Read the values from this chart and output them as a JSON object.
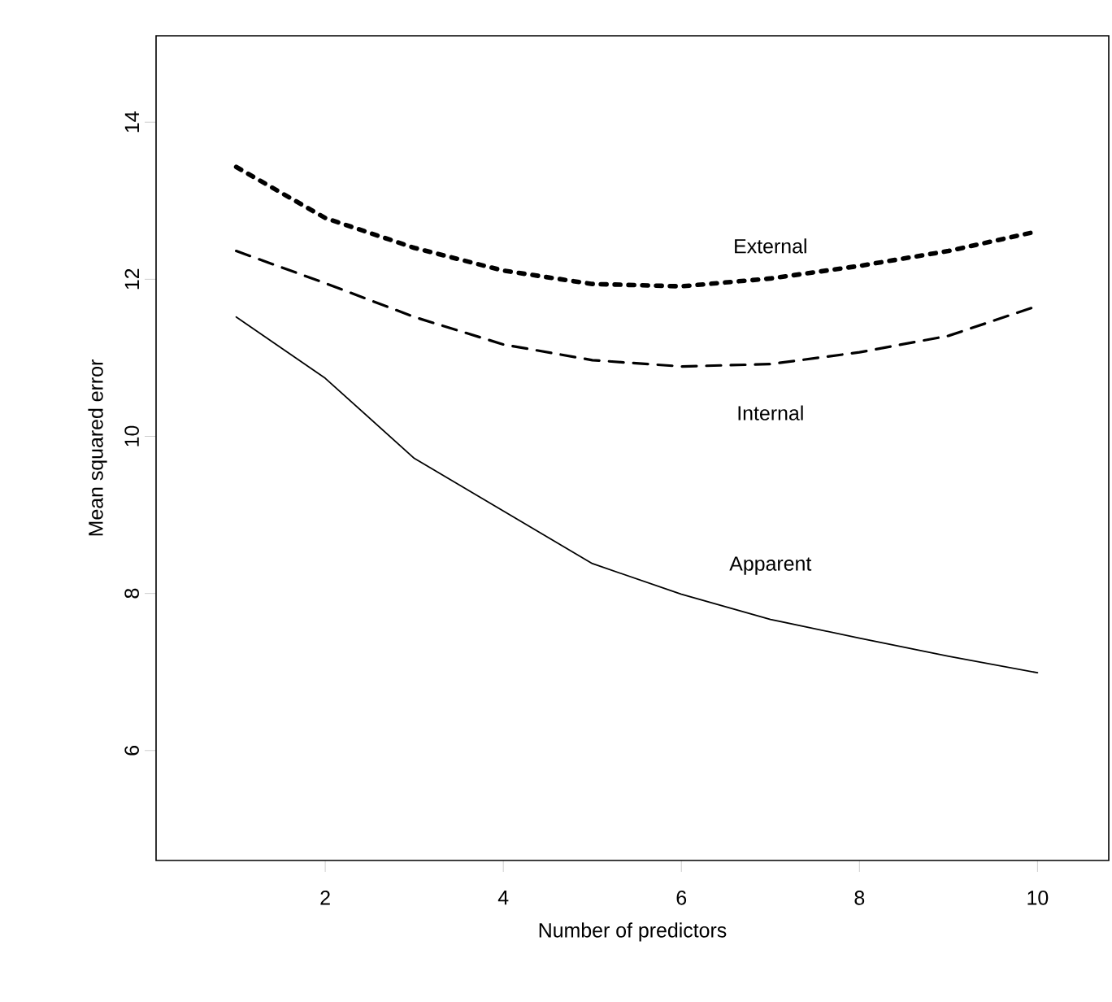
{
  "chart_data": {
    "type": "line",
    "xlabel": "Number of predictors",
    "ylabel": "Mean squared error",
    "x": [
      1,
      2,
      3,
      4,
      5,
      6,
      7,
      8,
      9,
      10
    ],
    "xlim": [
      0.1,
      10.8
    ],
    "ylim": [
      4.6,
      15.1
    ],
    "xticks": [
      2,
      4,
      6,
      8,
      10
    ],
    "yticks": [
      6,
      8,
      10,
      12,
      14
    ],
    "grid": false,
    "legend": false,
    "series": [
      {
        "name": "External",
        "color": "#000000",
        "line_style": "dotted",
        "values": [
          13.43,
          12.78,
          12.4,
          12.11,
          11.94,
          11.91,
          12.01,
          12.17,
          12.36,
          12.61
        ]
      },
      {
        "name": "Internal",
        "color": "#000000",
        "line_style": "dashed",
        "values": [
          12.36,
          11.95,
          11.52,
          11.17,
          10.97,
          10.89,
          10.92,
          11.07,
          11.28,
          11.66
        ]
      },
      {
        "name": "Apparent",
        "color": "#000000",
        "line_style": "solid",
        "values": [
          11.52,
          10.74,
          9.72,
          9.05,
          8.38,
          7.99,
          7.67,
          7.43,
          7.2,
          6.99
        ]
      }
    ]
  }
}
